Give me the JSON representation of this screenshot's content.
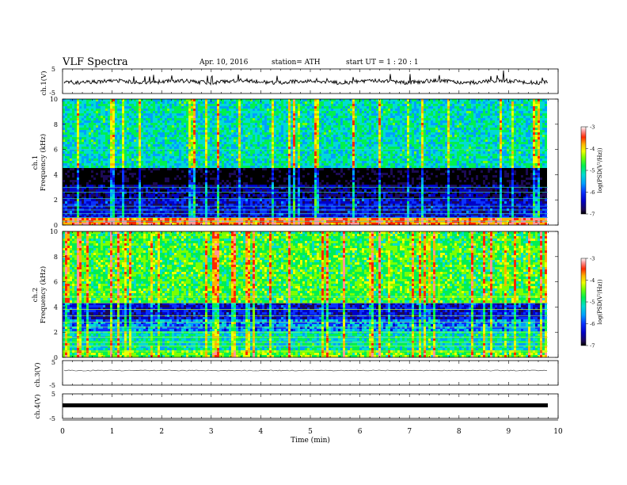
{
  "header": {
    "title": "VLF  Spectra",
    "date": "Apr. 10, 2016",
    "station": "station= ATH",
    "start": "start  UT  =   1  : 20 : 1"
  },
  "colors": {
    "palette": [
      "#000000",
      "#1c0a55",
      "#0000c8",
      "#0a32ff",
      "#00a0ff",
      "#00dcd2",
      "#00f050",
      "#7cff00",
      "#f0ff00",
      "#ffb400",
      "#ff2800",
      "#ff9696",
      "#ffffff"
    ]
  },
  "chart_data": [
    {
      "type": "line",
      "ylabel": "ch.1(V)",
      "ylim": [
        -5,
        5
      ],
      "yticks": [
        "5",
        "-5"
      ],
      "xlim": [
        0,
        10
      ],
      "trace": "noisy signal around 0 V, amplitude ~0.8 V, occasional spikes",
      "baseline": 0
    },
    {
      "type": "heatmap",
      "ylabel": "ch.1\nFrequency (kHz)",
      "ylabel_top": "ch.1",
      "ylabel_bottom": "Frequency (kHz)",
      "ylim": [
        0,
        10
      ],
      "yticks": [
        "0",
        "2",
        "4",
        "6",
        "8",
        "10"
      ],
      "xlim": [
        0,
        9.8
      ],
      "colorbar": {
        "label": "log(PSD(V²/Hz))",
        "range": [
          -7,
          -3
        ],
        "ticks": [
          "-3",
          "-4",
          "-5",
          "-6",
          "-7"
        ]
      },
      "description_levels": {
        "0-0.5kHz": -3.5,
        "0.5-2kHz": -6.2,
        "2-3.2kHz": -6.4,
        "3.2-4.5kHz": -6.8,
        "4.5-10kHz": -5.0
      }
    },
    {
      "type": "heatmap",
      "ylabel": "ch.2\nFrequency (kHz)",
      "ylabel_top": "ch.2",
      "ylabel_bottom": "Frequency (kHz)",
      "ylim": [
        0,
        10
      ],
      "yticks": [
        "0",
        "2",
        "4",
        "6",
        "8",
        "10"
      ],
      "xlim": [
        0,
        9.8
      ],
      "colorbar": {
        "label": "log(PSD(V²/Hz))",
        "range": [
          -7,
          -3
        ],
        "ticks": [
          "-3",
          "-4",
          "-5",
          "-6",
          "-7"
        ]
      },
      "description_levels": {
        "0-0.5kHz": -4.5,
        "0.5-2kHz": -5.0,
        "2-3kHz": -5.6,
        "3-4.5kHz": -6.0,
        "4.5-10kHz": -4.6
      }
    },
    {
      "type": "line",
      "ylabel": "ch.3(V)",
      "ylim": [
        -5,
        5
      ],
      "yticks": [
        "5",
        "-5"
      ],
      "xlim": [
        0,
        9.8
      ],
      "baseline": 0
    },
    {
      "type": "line",
      "ylabel": "ch.4(V)",
      "ylim": [
        -5,
        5
      ],
      "yticks": [
        "5",
        "-5"
      ],
      "xlim": [
        0,
        9.8
      ],
      "baseline": 0
    }
  ],
  "xaxis": {
    "label": "Time  (min)",
    "range": [
      0,
      10
    ],
    "ticks": [
      "0",
      "1",
      "2",
      "3",
      "4",
      "5",
      "6",
      "7",
      "8",
      "9",
      "10"
    ]
  }
}
